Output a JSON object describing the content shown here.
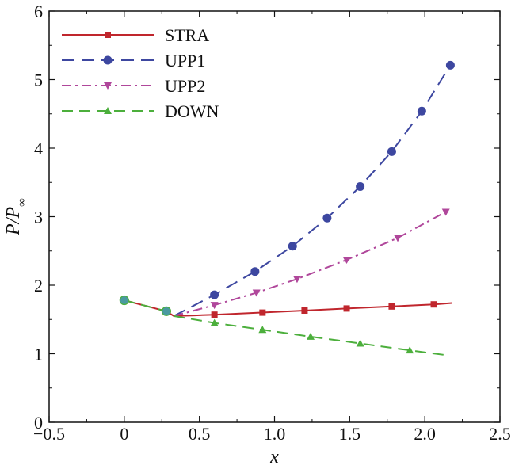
{
  "chart_data": {
    "type": "line",
    "xlabel": "x",
    "ylabel": "P/P",
    "ylabel_subscript": "∞",
    "xlim": [
      -0.5,
      2.5
    ],
    "ylim": [
      0,
      6
    ],
    "xticks": [
      "−0.5",
      "0",
      "0.5",
      "1.0",
      "1.5",
      "2.0",
      "2.5"
    ],
    "xtick_values": [
      -0.5,
      0,
      0.5,
      1.0,
      1.5,
      2.0,
      2.5
    ],
    "yticks": [
      "0",
      "1",
      "2",
      "3",
      "4",
      "5",
      "6"
    ],
    "ytick_values": [
      0,
      1,
      2,
      3,
      4,
      5,
      6
    ],
    "grid": false,
    "legend_position": "top-left",
    "common_points": [
      {
        "x": 0.0,
        "y": 1.78
      },
      {
        "x": 0.28,
        "y": 1.62
      }
    ],
    "series": [
      {
        "name": "STRA",
        "color": "#c0262d",
        "dash": "solid",
        "marker": "square",
        "x": [
          0.0,
          0.28,
          0.33,
          0.47,
          0.6,
          0.9,
          1.2,
          1.48,
          1.78,
          2.06,
          2.18
        ],
        "y": [
          1.78,
          1.62,
          1.55,
          1.56,
          1.57,
          1.6,
          1.63,
          1.66,
          1.69,
          1.72,
          1.74
        ],
        "marker_x": [
          0.6,
          0.92,
          1.2,
          1.48,
          1.78,
          2.06
        ],
        "marker_y": [
          1.57,
          1.6,
          1.63,
          1.66,
          1.69,
          1.72
        ]
      },
      {
        "name": "UPP1",
        "color": "#3d47a0",
        "dash": "long-dash",
        "marker": "circle",
        "x": [
          0.33,
          0.6,
          0.87,
          1.12,
          1.35,
          1.57,
          1.78,
          1.98,
          2.17
        ],
        "y": [
          1.55,
          1.86,
          2.2,
          2.57,
          2.98,
          3.44,
          3.95,
          4.54,
          5.21
        ],
        "marker_x": [
          0.6,
          0.87,
          1.12,
          1.35,
          1.57,
          1.78,
          1.98,
          2.17
        ],
        "marker_y": [
          1.86,
          2.2,
          2.57,
          2.98,
          3.44,
          3.95,
          4.54,
          5.21
        ]
      },
      {
        "name": "UPP2",
        "color": "#b0479b",
        "dash": "dash-dot",
        "marker": "triangle-down",
        "x": [
          0.33,
          0.6,
          0.88,
          1.15,
          1.48,
          1.82,
          2.14
        ],
        "y": [
          1.55,
          1.71,
          1.89,
          2.09,
          2.37,
          2.69,
          3.07
        ],
        "marker_x": [
          0.6,
          0.88,
          1.15,
          1.48,
          1.82,
          2.14
        ],
        "marker_y": [
          1.71,
          1.89,
          2.09,
          2.37,
          2.69,
          3.07
        ]
      },
      {
        "name": "DOWN",
        "color": "#4caf3c",
        "dash": "dash",
        "marker": "triangle-up",
        "x": [
          0.0,
          0.28,
          0.33,
          0.6,
          0.92,
          1.24,
          1.57,
          1.9,
          2.14
        ],
        "y": [
          1.78,
          1.62,
          1.55,
          1.45,
          1.35,
          1.25,
          1.15,
          1.05,
          0.98
        ],
        "marker_x": [
          0.6,
          0.92,
          1.24,
          1.57,
          1.9
        ],
        "marker_y": [
          1.45,
          1.35,
          1.25,
          1.15,
          1.05
        ]
      }
    ]
  }
}
